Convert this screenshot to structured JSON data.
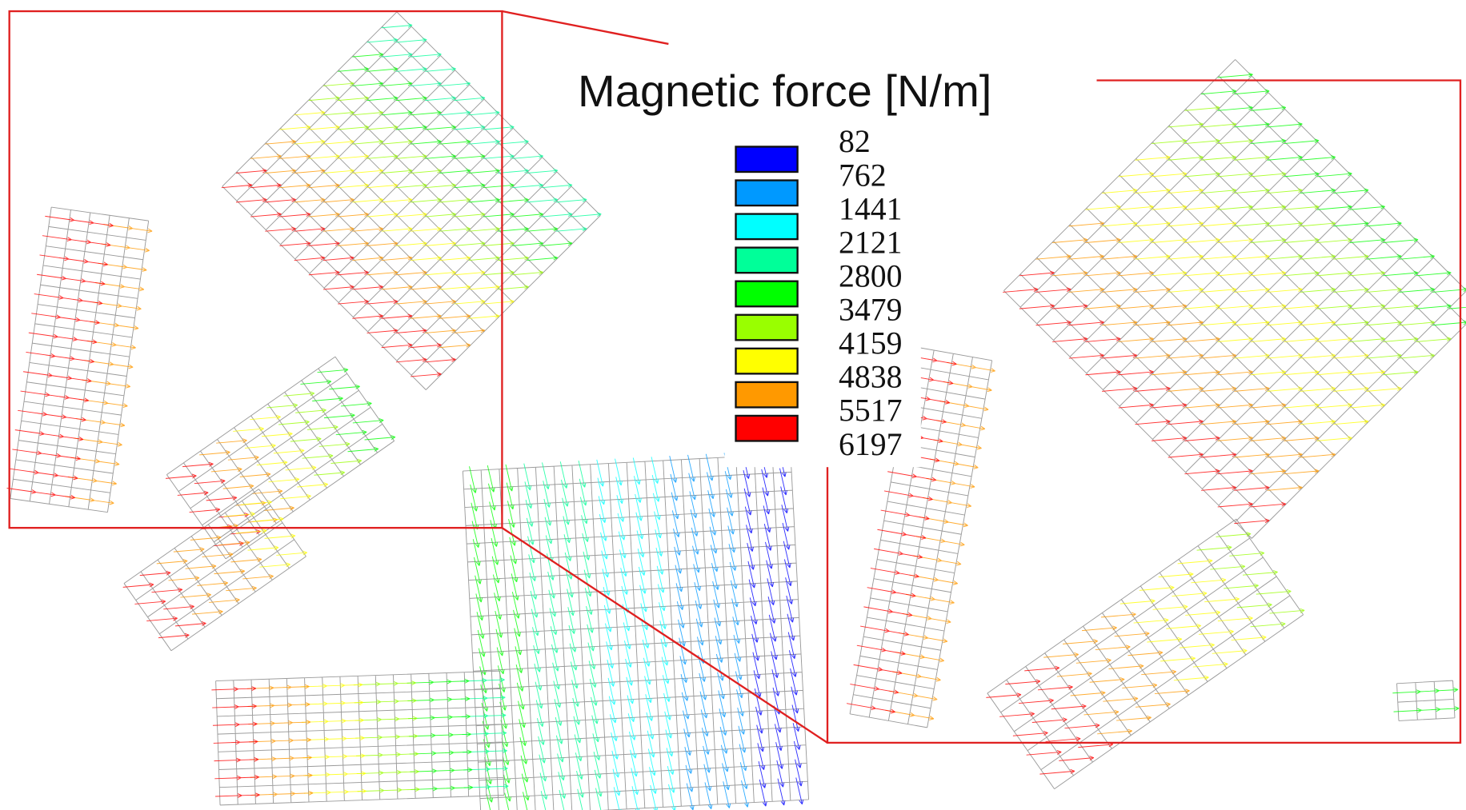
{
  "title": "Magnetic force [N/m]",
  "legend": {
    "levels": [
      82,
      762,
      1441,
      2121,
      2800,
      3479,
      4159,
      4838,
      5517,
      6197
    ],
    "colors": [
      "#0000ff",
      "#0099ff",
      "#00ffff",
      "#00ff99",
      "#00ff00",
      "#99ff00",
      "#ffff00",
      "#ff9900",
      "#ff0000"
    ]
  }
}
